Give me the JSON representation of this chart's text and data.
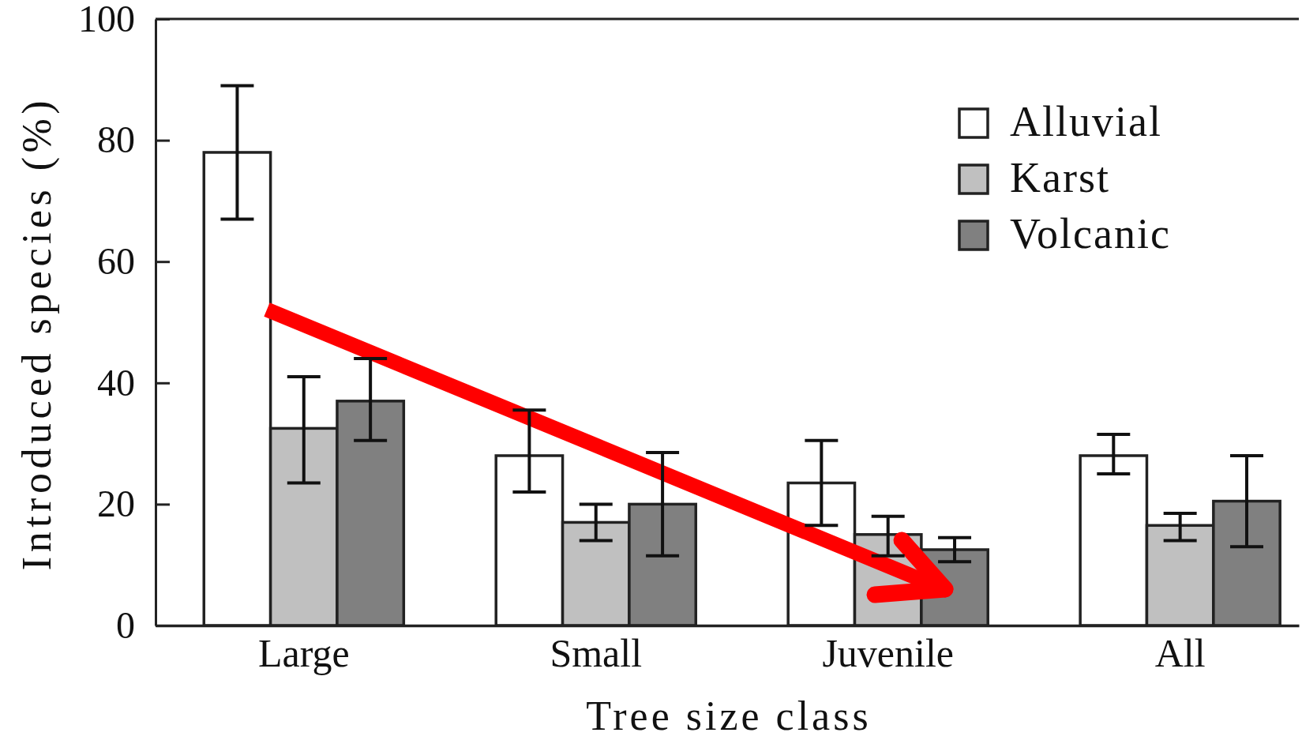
{
  "chart_data": {
    "type": "bar",
    "xlabel": "Tree size class",
    "ylabel": "Introduced species (%)",
    "categories": [
      "Large",
      "Small",
      "Juvenile",
      "All"
    ],
    "series": [
      {
        "name": "Alluvial",
        "color": "#ffffff",
        "values": [
          78,
          28,
          23.5,
          28
        ],
        "errors": [
          [
            67,
            89
          ],
          [
            22,
            35.5
          ],
          [
            16.5,
            30.5
          ],
          [
            25,
            31.5
          ]
        ]
      },
      {
        "name": "Karst",
        "color": "#c0c0c0",
        "values": [
          32.5,
          17,
          15,
          16.5
        ],
        "errors": [
          [
            23.5,
            41
          ],
          [
            14,
            20
          ],
          [
            11.5,
            18
          ],
          [
            14,
            18.5
          ]
        ]
      },
      {
        "name": "Volcanic",
        "color": "#808080",
        "values": [
          37,
          20,
          12.5,
          20.5
        ],
        "errors": [
          [
            30.5,
            44
          ],
          [
            11.5,
            28.5
          ],
          [
            10.5,
            14.5
          ],
          [
            13,
            28
          ]
        ]
      }
    ],
    "ylim": [
      0,
      100
    ],
    "yticks": [
      0,
      20,
      40,
      60,
      80,
      100
    ],
    "legend": "top right"
  }
}
